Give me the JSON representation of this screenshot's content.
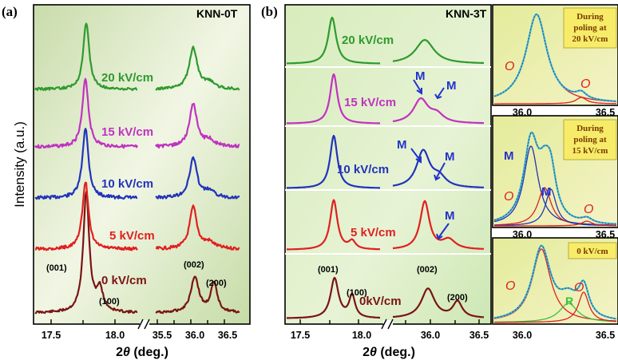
{
  "colors": {
    "panel_bg": "#dbe8c2",
    "panel_b_bg": "#d5ecbe",
    "note_bg": "#f6ec6a",
    "arrow": "#2233cc",
    "fit_total": "#31b8d8",
    "experimental": "#5a3a7a",
    "fit_M": "#2233bb",
    "fit_O": "#dd2020",
    "fit_R": "#3cbf3c"
  },
  "panel_a": {
    "letter": "(a)",
    "sample": "KNN-0T",
    "ylabel": "Intensity (a.u.)",
    "xlabel": "2θ (deg.)",
    "xlabel_prefix": "2",
    "xlabel_theta": "θ",
    "xlabel_suffix": " (deg.)",
    "xticks_left": [
      "17.5",
      "18.0"
    ],
    "xticks_right": [
      "35.5",
      "36.0",
      "36.5"
    ],
    "peaks": {
      "p001": "(001)",
      "p100": "(100)",
      "p002": "(002)",
      "p200": "(200)"
    }
  },
  "panel_b": {
    "letter": "(b)",
    "sample": "KNN-3T",
    "xlabel_prefix": "2",
    "xlabel_theta": "θ",
    "xlabel_suffix": " (deg.)",
    "xticks_left": [
      "17.5",
      "18.0"
    ],
    "xticks_right": [
      "36.0",
      "36.5"
    ],
    "peaks": {
      "p001": "(001)",
      "p100": "(100)",
      "p002": "(002)",
      "p200": "(200)"
    },
    "marker_M": "M"
  },
  "panel_c": {
    "notes": [
      {
        "lines": [
          "During",
          "poling at",
          "20 kV/cm"
        ]
      },
      {
        "lines": [
          "During",
          "poling at",
          "15 kV/cm"
        ]
      },
      {
        "lines": [
          "0 kV/cm"
        ]
      }
    ],
    "phase_labels": {
      "O": "O",
      "M": "M",
      "R": "R"
    },
    "xticks": [
      "36.0",
      "36.5"
    ]
  },
  "chart_data": [
    {
      "type": "line",
      "panel": "a",
      "title": "KNN-0T",
      "xlabel": "2θ (deg.)",
      "ylabel": "Intensity (a.u.)",
      "axis_break": [
        18.25,
        35.5
      ],
      "xlim_left": [
        17.4,
        18.25
      ],
      "xlim_right": [
        35.5,
        36.7
      ],
      "series": [
        {
          "name": "0 kV/cm",
          "color": "#7a1414",
          "peaks": [
            {
              "x": 18.1,
              "h": 1.0,
              "label": "(001)"
            },
            {
              "x": 18.18,
              "h": 0.25,
              "label": "(100)"
            },
            {
              "x": 35.98,
              "h": 0.45,
              "label": "(002)"
            },
            {
              "x": 36.2,
              "h": 0.32,
              "label": "(200)"
            }
          ]
        },
        {
          "name": "5 kV/cm",
          "color": "#e02020",
          "peaks": [
            {
              "x": 18.1,
              "h": 0.85
            },
            {
              "x": 35.97,
              "h": 0.55
            }
          ]
        },
        {
          "name": "10 kV/cm",
          "color": "#2233bb",
          "peaks": [
            {
              "x": 18.1,
              "h": 0.85
            },
            {
              "x": 35.97,
              "h": 0.55
            }
          ]
        },
        {
          "name": "15 kV/cm",
          "color": "#c032c0",
          "peaks": [
            {
              "x": 18.1,
              "h": 0.85
            },
            {
              "x": 35.97,
              "h": 0.55
            }
          ]
        },
        {
          "name": "20 kV/cm",
          "color": "#2e9a2e",
          "peaks": [
            {
              "x": 18.1,
              "h": 0.85
            },
            {
              "x": 35.97,
              "h": 0.55
            }
          ]
        }
      ]
    },
    {
      "type": "line",
      "panel": "b",
      "title": "KNN-3T",
      "xlabel": "2θ (deg.)",
      "axis_break": [
        18.3,
        35.6
      ],
      "xlim_left": [
        17.4,
        18.3
      ],
      "xlim_right": [
        35.6,
        36.6
      ],
      "series": [
        {
          "name": "0kV/cm",
          "color": "#7a1414",
          "peaks": [
            {
              "x": 17.9,
              "h": 0.8,
              "label": "(001)"
            },
            {
              "x": 18.1,
              "h": 0.45,
              "label": "(100)"
            },
            {
              "x": 36.1,
              "h": 0.55,
              "label": "(002)"
            },
            {
              "x": 36.4,
              "h": 0.3,
              "label": "(200)"
            }
          ]
        },
        {
          "name": "5 kV/cm",
          "color": "#e02020",
          "peaks": [
            {
              "x": 17.9,
              "h": 0.9
            },
            {
              "x": 36.1,
              "h": 0.8
            }
          ],
          "markers": [
            "M"
          ]
        },
        {
          "name": "10 kV/cm",
          "color": "#2233bb",
          "peaks": [
            {
              "x": 17.9,
              "h": 0.9
            },
            {
              "x": 36.1,
              "h": 0.6
            }
          ],
          "markers": [
            "M",
            "M"
          ]
        },
        {
          "name": "15 kV/cm",
          "color": "#c032c0",
          "peaks": [
            {
              "x": 17.9,
              "h": 0.9
            },
            {
              "x": 36.1,
              "h": 0.5
            }
          ],
          "markers": [
            "M",
            "M"
          ]
        },
        {
          "name": "20 kV/cm",
          "color": "#2e9a2e",
          "peaks": [
            {
              "x": 17.9,
              "h": 0.9
            },
            {
              "x": 36.1,
              "h": 0.4
            }
          ]
        }
      ]
    },
    {
      "type": "line",
      "panel": "c",
      "xlim": [
        35.6,
        36.6
      ],
      "subplots": [
        {
          "note": "During poling at 20 kV/cm",
          "components": [
            "O",
            "O"
          ]
        },
        {
          "note": "During poling at 15 kV/cm",
          "components": [
            "M",
            "O",
            "M",
            "O"
          ]
        },
        {
          "note": "0 kV/cm",
          "components": [
            "O",
            "R",
            "O"
          ]
        }
      ]
    }
  ]
}
